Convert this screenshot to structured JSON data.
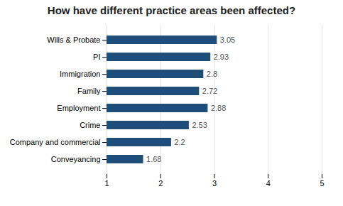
{
  "chart_data": {
    "type": "bar",
    "orientation": "horizontal",
    "title": "How have different practice areas been affected?",
    "categories": [
      "Conveyancing",
      "Company and commercial",
      "Crime",
      "Employment",
      "Family",
      "Immigration",
      "PI",
      "Wills & Probate"
    ],
    "values": [
      1.68,
      2.2,
      2.53,
      2.88,
      2.72,
      2.8,
      2.93,
      3.05
    ],
    "value_labels": [
      "1.68",
      "2.2",
      "2.53",
      "2.88",
      "2.72",
      "2.8",
      "2.93",
      "3.05"
    ],
    "color": "#1f4e79",
    "xlim": [
      1,
      5
    ],
    "xticks": [
      1,
      2,
      3,
      4,
      5
    ],
    "grid": true,
    "data_labels": true
  }
}
